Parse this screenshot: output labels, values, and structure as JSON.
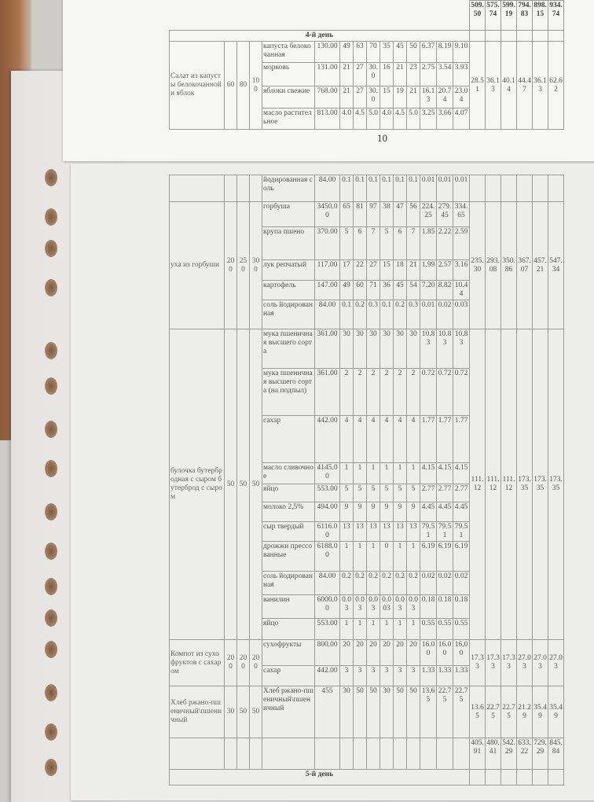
{
  "sheet1": {
    "page_number": "10",
    "prev_totals": [
      "509.50",
      "575.74",
      "599.19",
      "794.83",
      "898.15",
      "934.74"
    ],
    "day_label": "4-й день",
    "dishes": [
      {
        "name": "Салат из капусты белокочанной и яблок",
        "portions": [
          "60",
          "80",
          "100"
        ],
        "ingredients": [
          {
            "name": "капуста белокочанная",
            "price": "130.00",
            "qty": [
              "49",
              "63",
              "70",
              "35",
              "45",
              "50"
            ],
            "cost": [
              "6.37",
              "8.19",
              "9.10"
            ]
          },
          {
            "name": "морковь",
            "price": "131.00",
            "qty": [
              "21",
              "27",
              "30.0",
              "16",
              "21",
              "23"
            ],
            "cost": [
              "2.75",
              "3.54",
              "3.93"
            ]
          },
          {
            "name": "яблоки свежие",
            "price": "768.00",
            "qty": [
              "21",
              "27",
              "30.0",
              "15",
              "19",
              "21"
            ],
            "cost": [
              "16.13",
              "20.74",
              "23.04"
            ]
          },
          {
            "name": "масло растительное",
            "price": "813.00",
            "qty": [
              "4.0",
              "4.5",
              "5.0",
              "4.0",
              "4.5",
              "5.0"
            ],
            "cost": [
              "3.25",
              "3.66",
              "4.07"
            ]
          }
        ],
        "totals": [
          "28.51",
          "36.13",
          "40.14",
          "44.47",
          "36.13",
          "62.62"
        ]
      }
    ]
  },
  "sheet2": {
    "dishes": [
      {
        "name": "",
        "portions": [
          "",
          "",
          ""
        ],
        "ingredients": [
          {
            "name": "йодированная соль",
            "price": "84.00",
            "qty": [
              "0.1",
              "0.1",
              "0.1",
              "0.1",
              "0.1",
              "0.1"
            ],
            "cost": [
              "0.01",
              "0.01",
              "0.01"
            ]
          }
        ],
        "totals": [
          "",
          "",
          "",
          "",
          "",
          ""
        ]
      },
      {
        "name": "уха из горбуши",
        "portions": [
          "200",
          "250",
          "300"
        ],
        "ingredients": [
          {
            "name": "горбуша",
            "price": "3450.00",
            "qty": [
              "65",
              "81",
              "97",
              "38",
              "47",
              "56"
            ],
            "cost": [
              "224.25",
              "279.45",
              "334.65"
            ]
          },
          {
            "name": "крупа пшено",
            "price": "370.00",
            "qty": [
              "5",
              "6",
              "7",
              "5",
              "6",
              "7"
            ],
            "cost": [
              "1.85",
              "2.22",
              "2.59"
            ]
          },
          {
            "name": "лук репчатый",
            "price": "117.00",
            "qty": [
              "17",
              "22",
              "27",
              "15",
              "18",
              "21"
            ],
            "cost": [
              "1.99",
              "2.57",
              "3.16"
            ]
          },
          {
            "name": "картофель",
            "price": "147.00",
            "qty": [
              "49",
              "60",
              "71",
              "36",
              "45",
              "54"
            ],
            "cost": [
              "7.20",
              "8.82",
              "10.44"
            ]
          },
          {
            "name": "соль йодированная",
            "price": "84.00",
            "qty": [
              "0.1",
              "0.2",
              "0.3",
              "0.1",
              "0.2",
              "0.3"
            ],
            "cost": [
              "0.01",
              "0.02",
              "0.03"
            ]
          }
        ],
        "totals": [
          "235.30",
          "293.08",
          "350.86",
          "367.07",
          "457.21",
          "547.34"
        ]
      },
      {
        "name": "булочка бутербродная с сыром бутерброд с сыром",
        "portions": [
          "50",
          "50",
          "50"
        ],
        "ingredients": [
          {
            "name": "мука пшеничная высшего сорта",
            "price": "361.00",
            "qty": [
              "30",
              "30",
              "30",
              "30",
              "30",
              "30"
            ],
            "cost": [
              "10.83",
              "10.83",
              "10.83"
            ]
          },
          {
            "name": "мука пшеничная высшего сорта (на подпыл)",
            "price": "361.00",
            "qty": [
              "2",
              "2",
              "2",
              "2",
              "2",
              "2"
            ],
            "cost": [
              "0.72",
              "0.72",
              "0.72"
            ]
          },
          {
            "name": "сахар",
            "price": "442.00",
            "qty": [
              "4",
              "4",
              "4",
              "4",
              "4",
              "4"
            ],
            "cost": [
              "1.77",
              "1.77",
              "1.77"
            ]
          },
          {
            "name": "масло сливочное",
            "price": "4145.00",
            "qty": [
              "1",
              "1",
              "1",
              "1",
              "1",
              "1"
            ],
            "cost": [
              "4.15",
              "4.15",
              "4.15"
            ]
          },
          {
            "name": "яйцо",
            "price": "553.00",
            "qty": [
              "5",
              "5",
              "5",
              "5",
              "5",
              "5"
            ],
            "cost": [
              "2.77",
              "2.77",
              "2.77"
            ]
          },
          {
            "name": "молоко 2,5%",
            "price": "494.00",
            "qty": [
              "9",
              "9",
              "9",
              "9",
              "9",
              "9"
            ],
            "cost": [
              "4.45",
              "4.45",
              "4.45"
            ]
          },
          {
            "name": "сыр твердый",
            "price": "6116.00",
            "qty": [
              "13",
              "13",
              "13",
              "13",
              "13",
              "13"
            ],
            "cost": [
              "79.51",
              "79.51",
              "79.51"
            ]
          },
          {
            "name": "дрожжи прессованные",
            "price": "6188.00",
            "qty": [
              "1",
              "1",
              "1",
              "0",
              "1",
              "1"
            ],
            "cost": [
              "6.19",
              "6.19",
              "6.19"
            ]
          },
          {
            "name": "соль йодированная",
            "price": "84.00",
            "qty": [
              "0.2",
              "0.2",
              "0.2",
              "0.2",
              "0.2",
              "0.2"
            ],
            "cost": [
              "0.02",
              "0.02",
              "0.02"
            ]
          },
          {
            "name": "ванилин",
            "price": "6000.00",
            "qty": [
              "0.03",
              "0.03",
              "0.03",
              "0.003",
              "0.03",
              "0.03"
            ],
            "cost": [
              "0.18",
              "0.18",
              "0.18"
            ]
          },
          {
            "name": "яйцо",
            "price": "553.00",
            "qty": [
              "1",
              "1",
              "1",
              "1",
              "1",
              "1"
            ],
            "cost": [
              "0.55",
              "0.55",
              "0.55"
            ]
          }
        ],
        "totals": [
          "111.12",
          "111.12",
          "111.12",
          "173.35",
          "173.35",
          "173.35"
        ]
      },
      {
        "name": "Компот из сухофруктов с сахаром",
        "portions": [
          "200",
          "200",
          "200"
        ],
        "ingredients": [
          {
            "name": "сухофрукты",
            "price": "800.00",
            "qty": [
              "20",
              "20",
              "20",
              "20",
              "20",
              "20"
            ],
            "cost": [
              "16.00",
              "16.00",
              "16.00"
            ]
          },
          {
            "name": "сахар",
            "price": "442.00",
            "qty": [
              "3",
              "3",
              "3",
              "3",
              "3",
              "3"
            ],
            "cost": [
              "1.33",
              "1.33",
              "1.33"
            ]
          }
        ],
        "totals": [
          "17.33",
          "17.33",
          "17.33",
          "27.03",
          "27.03",
          "27.03"
        ]
      },
      {
        "name": "Хлеб ржано-пшеничный\\пшеничный",
        "portions": [
          "30",
          "50",
          "50"
        ],
        "ingredients": [
          {
            "name": "Хлеб ржано-пшеничный\\пшеничный",
            "price": "455",
            "qty": [
              "30",
              "50",
              "50",
              "30",
              "50",
              "50"
            ],
            "cost": [
              "13.65",
              "22.75",
              "22.75"
            ]
          }
        ],
        "totals": [
          "13.65",
          "22.75",
          "22.75",
          "21.29",
          "35.49",
          "35.49"
        ]
      }
    ],
    "grand_totals": [
      "405.91",
      "480.41",
      "542.29",
      "633.22",
      "729.29",
      "845.84"
    ],
    "next_day_label": "5-й день"
  }
}
